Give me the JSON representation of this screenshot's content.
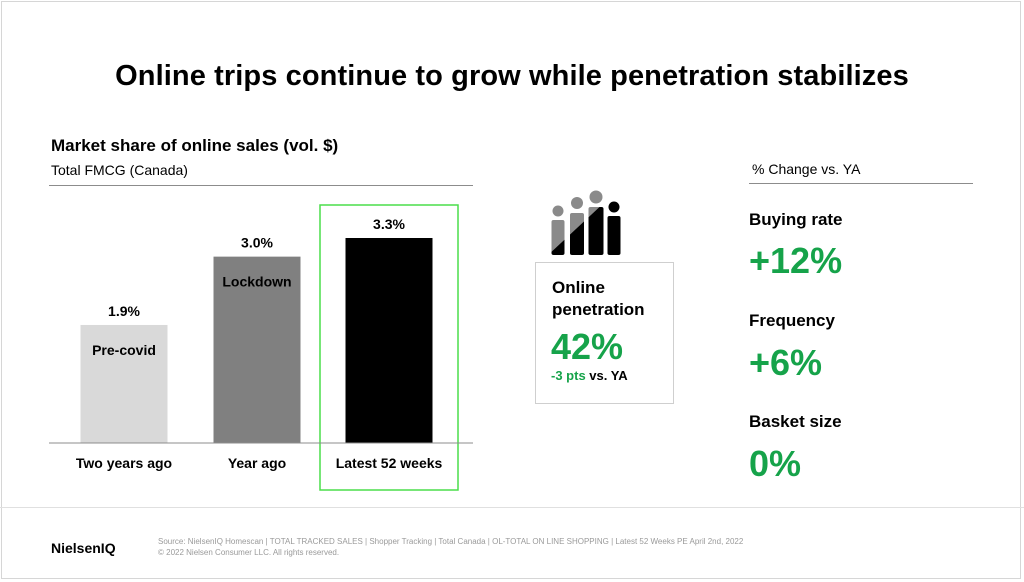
{
  "title": "Online trips continue to grow while penetration stabilizes",
  "chart_data": {
    "type": "bar",
    "title": "Market share of online sales (vol. $)",
    "subtitle": "Total FMCG (Canada)",
    "categories": [
      "Two years ago",
      "Year ago",
      "Latest 52 weeks"
    ],
    "values": [
      1.9,
      3.0,
      3.3
    ],
    "value_labels": [
      "1.9%",
      "3.0%",
      "3.3%"
    ],
    "bar_annotations": [
      "Pre-covid",
      "Lockdown",
      ""
    ],
    "colors": [
      "#d9d9d9",
      "#808080",
      "#000000"
    ],
    "highlight_category": "Latest 52 weeks",
    "highlight_color": "#4ade4a",
    "ylim": [
      0,
      3.3
    ],
    "unit": "%",
    "grid": false,
    "legend": "none"
  },
  "penetration": {
    "icon": "people-group-icon",
    "label": "Online penetration",
    "value": "42%",
    "note_change": "-3 pts",
    "note_suffix": "vs. YA"
  },
  "metrics_header": "% Change vs. YA",
  "metrics": [
    {
      "label": "Buying rate",
      "value": "+12%"
    },
    {
      "label": "Frequency",
      "value": "+6%"
    },
    {
      "label": "Basket size",
      "value": "0%"
    }
  ],
  "footer": {
    "brand": "NielsenIQ",
    "source": "Source: NielsenIQ Homescan | TOTAL TRACKED SALES | Shopper Tracking | Total Canada | OL-TOTAL ON LINE SHOPPING | Latest 52 Weeks PE April 2nd, 2022",
    "copyright": "© 2022 Nielsen Consumer LLC. All rights reserved."
  },
  "colors": {
    "accent_green": "#16a34a",
    "highlight_box": "#4ade4a"
  }
}
